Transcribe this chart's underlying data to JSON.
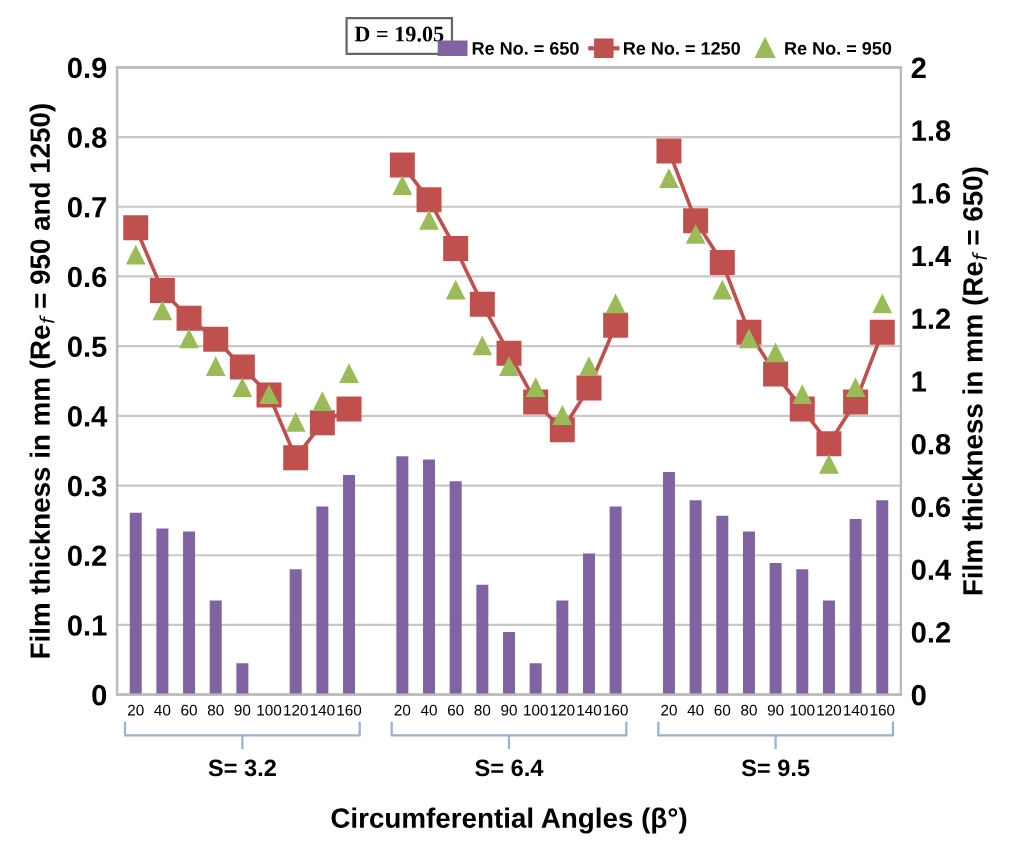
{
  "chart_data": {
    "type": "bar",
    "xlabel": "Circumferential Angles (β°)",
    "ylabel": "Film thickness in mm (Re$_{f}$ = 950 and 1250)",
    "y2label": "Film thickness in mm (Re$_{f}$ = 650)",
    "categories": [
      "20",
      "40",
      "60",
      "80",
      "90",
      "100",
      "120",
      "140",
      "160",
      null,
      "20",
      "40",
      "60",
      "80",
      "90",
      "100",
      "120",
      "140",
      "160",
      null,
      "20",
      "40",
      "60",
      "80",
      "90",
      "100",
      "120",
      "140",
      "160"
    ],
    "series": [
      {
        "name": "Re No. = 650",
        "axis": "y2",
        "color": "#8064a2",
        "values": [
          0.58,
          0.53,
          0.52,
          0.3,
          0.1,
          null,
          0.4,
          0.6,
          0.7,
          null,
          0.76,
          0.75,
          0.68,
          0.35,
          0.2,
          0.1,
          0.3,
          0.45,
          0.6,
          null,
          0.71,
          0.62,
          0.57,
          0.52,
          0.42,
          0.4,
          0.3,
          0.56,
          0.62
        ]
      },
      {
        "name": "Re No. = 1250",
        "type": "line",
        "marker": "square",
        "color": "#c0504d",
        "values": [
          0.67,
          0.58,
          0.54,
          0.51,
          0.47,
          0.43,
          0.34,
          0.39,
          0.41,
          null,
          0.76,
          0.71,
          0.64,
          0.56,
          0.49,
          0.42,
          0.38,
          0.44,
          0.53,
          null,
          0.78,
          0.68,
          0.62,
          0.52,
          0.46,
          0.41,
          0.36,
          0.42,
          0.52
        ]
      },
      {
        "name": "Re No. = 950",
        "type": "scatter",
        "marker": "triangle",
        "color": "#9bbb59",
        "values": [
          0.63,
          0.55,
          0.51,
          0.47,
          0.44,
          0.43,
          0.39,
          0.42,
          0.46,
          null,
          0.73,
          0.68,
          0.58,
          0.5,
          0.47,
          0.44,
          0.4,
          0.47,
          0.56,
          null,
          0.74,
          0.66,
          0.58,
          0.51,
          0.49,
          0.43,
          0.33,
          0.44,
          0.56
        ]
      }
    ],
    "ylim": [
      0,
      0.9
    ],
    "yticks": [
      0,
      0.1,
      0.2,
      0.3,
      0.4,
      0.5,
      0.6,
      0.7,
      0.8,
      0.9
    ],
    "y2lim": [
      0,
      2
    ],
    "y2ticks": [
      0,
      0.2,
      0.4,
      0.6,
      0.8,
      1,
      1.2,
      1.4,
      1.6,
      1.8,
      2
    ],
    "grid": "y",
    "legend": "top right",
    "annotations": [
      "D = 19.05",
      "S= 3.2",
      "S= 6.4",
      "S= 9.5"
    ]
  }
}
